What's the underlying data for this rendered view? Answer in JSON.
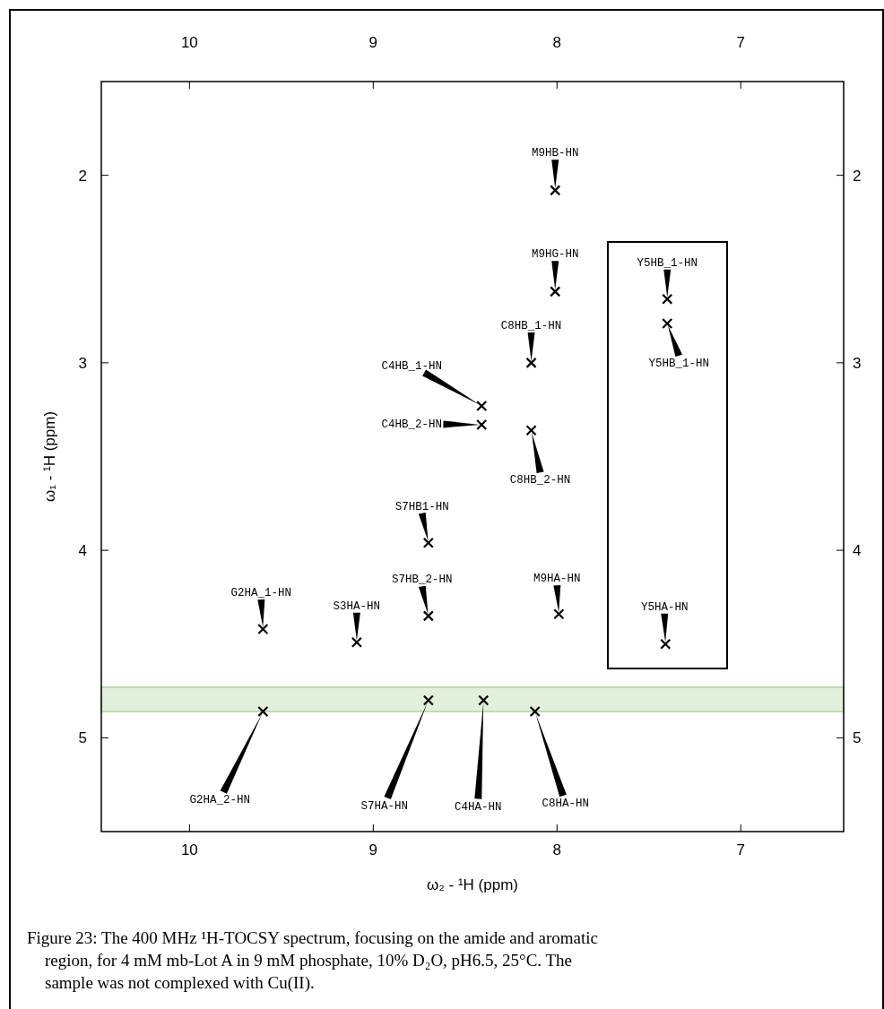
{
  "chart_data": {
    "type": "scatter",
    "xlabel": "ω₂ - ¹H (ppm)",
    "ylabel": "ω₁ - ¹H (ppm)",
    "xlim": [
      10.48,
      6.44
    ],
    "xticks": [
      10,
      9,
      8,
      7
    ],
    "x2lim": [
      10.48,
      6.44
    ],
    "x2ticks": [
      10,
      9,
      8,
      7
    ],
    "ylim": [
      5.5,
      1.5
    ],
    "yticks": [
      2,
      3,
      4,
      5
    ],
    "y2lim": [
      5.5,
      1.5
    ],
    "y2ticks": [
      2,
      3,
      4,
      5
    ],
    "marker": "cross",
    "grid": false,
    "series": [
      {
        "color": "#000000",
        "x": [
          8.01,
          8.01,
          8.14,
          8.14,
          8.41,
          8.41,
          8.7,
          8.7,
          9.09,
          9.6,
          9.6,
          8.7,
          8.4,
          8.12,
          7.99,
          7.4,
          7.4,
          7.41
        ],
        "values": [
          2.08,
          2.62,
          3.0,
          3.36,
          3.23,
          3.33,
          3.96,
          4.35,
          4.49,
          4.42,
          4.86,
          4.8,
          4.8,
          4.86,
          4.34,
          2.66,
          2.79,
          4.5
        ]
      }
    ],
    "bands": [
      {
        "axis": "y",
        "from": 4.73,
        "to": 4.86,
        "color": "#8cc56e"
      }
    ],
    "annotations": [
      {
        "text": "M9HB-HN",
        "x": 8.01,
        "y": 2.08
      },
      {
        "text": "M9HG-HN",
        "x": 8.01,
        "y": 2.62
      },
      {
        "text": "C8HB_1-HN",
        "x": 8.14,
        "y": 3.0
      },
      {
        "text": "C8HB_2-HN",
        "x": 8.14,
        "y": 3.36
      },
      "C4HB_1-HN",
      {
        "text": "C4HB_2-HN",
        "x": 8.41,
        "y": 3.33
      },
      {
        "text": "S7HB1-HN",
        "x": 8.7,
        "y": 3.96
      },
      {
        "text": "S7HB_2-HN",
        "x": 8.7,
        "y": 4.35
      },
      {
        "text": "S3HA-HN",
        "x": 9.09,
        "y": 4.49
      },
      {
        "text": "G2HA_1-HN",
        "x": 9.6,
        "y": 4.42
      },
      "G2HA_2-HN",
      {
        "text": "S7HA-HN",
        "x": 8.7,
        "y": 4.8
      },
      {
        "text": "C4HA-HN",
        "x": 8.4,
        "y": 4.8
      },
      {
        "text": "C8HA-HN",
        "x": 8.12,
        "y": 4.86
      },
      {
        "text": "M9HA-HN",
        "x": 7.99,
        "y": 4.34
      },
      {
        "text": "Y5HB_1-HN",
        "x": 7.4,
        "y": 2.66
      },
      {
        "text": "Y5HB_1-HN",
        "x": 7.4,
        "y": 2.79
      },
      {
        "text": "Y5HA-HN",
        "x": 7.41,
        "y": 4.5
      },
      "Figure 23: The 400 MHz ¹H-TOCSY spectrum, focusing on the amide and aromatic region, for 4 mM mb-Lot A in 9 mM phosphate, 10% D₂O, pH6.5, 25°C. The sample was not complexed with Cu(II)."
    ]
  }
}
